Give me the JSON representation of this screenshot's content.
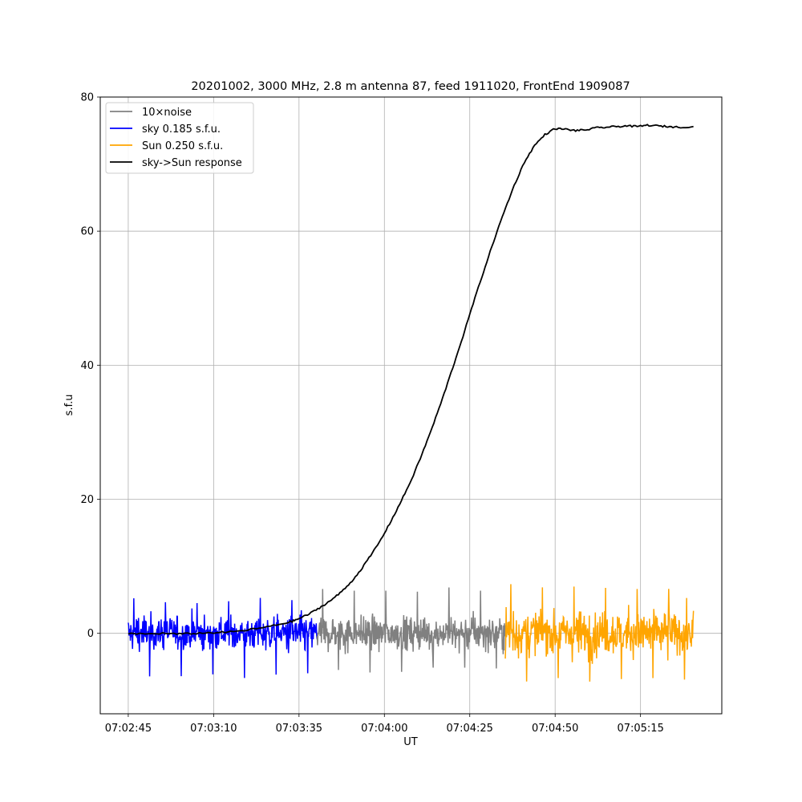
{
  "chart_data": {
    "type": "line",
    "title": "20201002, 3000 MHz, 2.8 m antenna 87, feed 1911020, FrontEnd 1909087",
    "xlabel": "UT",
    "ylabel": "s.f.u",
    "x_ticks": [
      "07:02:45",
      "07:03:10",
      "07:03:35",
      "07:04:00",
      "07:04:25",
      "07:04:50",
      "07:05:15"
    ],
    "x_tick_seconds": [
      0,
      25,
      50,
      75,
      100,
      125,
      150
    ],
    "xlim_seconds": [
      -8.2,
      173.8
    ],
    "y_ticks": [
      0,
      20,
      40,
      60,
      80
    ],
    "ylim": [
      -12,
      80
    ],
    "grid": true,
    "legend_location": "upper left",
    "colors": {
      "noise": "#808080",
      "sky": "#0000ff",
      "sun": "#ffa500",
      "response": "#000000"
    },
    "series": [
      {
        "name": "10×noise",
        "color": "#808080",
        "x_range_seconds": [
          55.3,
          110.4
        ],
        "mean": 0,
        "typical_range": [
          -3.5,
          4.5
        ],
        "extremes": [
          -6,
          7
        ]
      },
      {
        "name": "sky 0.185 s.f.u.",
        "color": "#0000ff",
        "x_range_seconds": [
          0,
          55.3
        ],
        "mean": 0,
        "typical_range": [
          -3.5,
          4
        ],
        "extremes": [
          -6.7,
          5.3
        ]
      },
      {
        "name": "Sun 0.250 s.f.u.",
        "color": "#ffa500",
        "x_range_seconds": [
          110.4,
          165.5
        ],
        "mean": 0,
        "typical_range": [
          -5,
          5.5
        ],
        "extremes": [
          -7.5,
          7.7
        ]
      },
      {
        "name": "sky->Sun response",
        "color": "#000000",
        "x_seconds": [
          0,
          5,
          10,
          15,
          20,
          25,
          30,
          35,
          40,
          45,
          48,
          50,
          53,
          56,
          59,
          62,
          65,
          68,
          71,
          74,
          77,
          80,
          83,
          86,
          89,
          92,
          95,
          98,
          101,
          104,
          107,
          110,
          113,
          116,
          119,
          122,
          125,
          128,
          131,
          134,
          137,
          140,
          143,
          146,
          149,
          152,
          155,
          158,
          161,
          165.5
        ],
        "values": [
          0,
          -0.1,
          0,
          -0.1,
          0,
          0.1,
          0.2,
          0.5,
          0.9,
          1.4,
          1.8,
          2.2,
          2.9,
          3.8,
          4.8,
          6.0,
          7.5,
          9.4,
          11.6,
          14.0,
          16.8,
          19.8,
          23.0,
          26.7,
          30.7,
          35.0,
          39.6,
          44.3,
          49.2,
          53.9,
          58.5,
          62.8,
          66.8,
          70.3,
          72.8,
          74.4,
          75.3,
          75.2,
          75.0,
          75.1,
          75.4,
          75.5,
          75.6,
          75.7,
          75.6,
          75.8,
          75.7,
          75.6,
          75.5,
          75.6
        ]
      }
    ]
  }
}
